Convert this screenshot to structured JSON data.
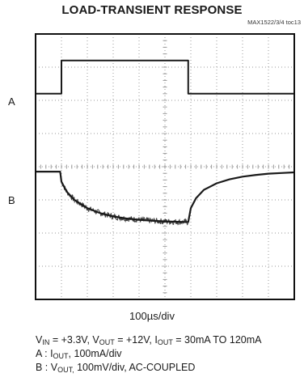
{
  "title": "LOAD-TRANSIENT RESPONSE",
  "figure_id": "MAX1522/3/4 toc13",
  "channel_labels": [
    "A",
    "B"
  ],
  "timebase": "100µs/div",
  "conditions": {
    "line1": [
      {
        "t": "V"
      },
      {
        "sub": "IN"
      },
      {
        "t": " = +3.3V, V"
      },
      {
        "sub": "OUT"
      },
      {
        "t": " = +12V, I"
      },
      {
        "sub": "OUT"
      },
      {
        "t": " = 30mA TO 120mA"
      }
    ],
    "line2": [
      {
        "t": "A : I"
      },
      {
        "sub": "OUT"
      },
      {
        "t": ", 100mA/div"
      }
    ],
    "line3": [
      {
        "t": "B : V"
      },
      {
        "sub": "OUT,"
      },
      {
        "t": " 100mV/div, AC-COUPLED"
      }
    ]
  },
  "colors": {
    "frame": "#111111",
    "trace": "#1a1a1a",
    "grid": "#9a9a9a"
  },
  "chart_data": {
    "type": "line",
    "title": "LOAD-TRANSIENT RESPONSE",
    "xlabel": "100µs/div",
    "ylabel": "",
    "grid": true,
    "divisions_x": 10,
    "divisions_y": 8,
    "x_unit": "divisions",
    "y_unit": "divisions",
    "xlim": [
      0,
      10
    ],
    "ylim": [
      0,
      8
    ],
    "series": [
      {
        "name": "A",
        "x": [
          0,
          1.0,
          1.0,
          5.9,
          5.9,
          10
        ],
        "y": [
          6.2,
          6.2,
          7.2,
          7.2,
          6.2,
          6.2
        ]
      },
      {
        "name": "B",
        "x": [
          0,
          0.95,
          1.0,
          1.2,
          1.5,
          2.0,
          2.5,
          3.0,
          3.5,
          4.0,
          4.5,
          5.0,
          5.5,
          5.9,
          6.0,
          6.2,
          6.5,
          7.0,
          7.5,
          8.0,
          8.5,
          9.0,
          9.5,
          10
        ],
        "y": [
          3.85,
          3.85,
          3.55,
          3.25,
          3.0,
          2.75,
          2.6,
          2.5,
          2.44,
          2.4,
          2.37,
          2.35,
          2.34,
          2.33,
          2.75,
          3.05,
          3.3,
          3.5,
          3.62,
          3.7,
          3.75,
          3.79,
          3.81,
          3.83
        ]
      }
    ]
  }
}
